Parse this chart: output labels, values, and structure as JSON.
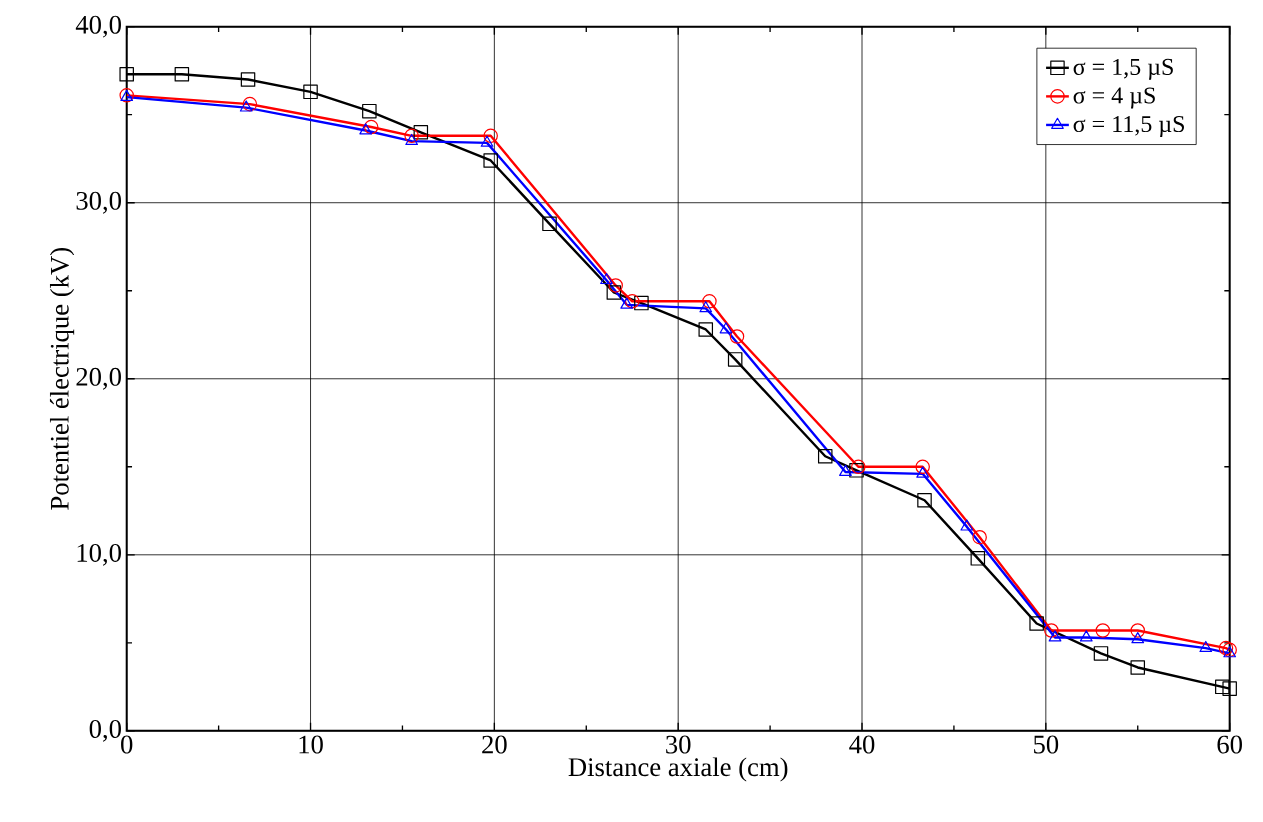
{
  "chart_data": {
    "type": "line",
    "xlabel": "Distance axiale (cm)",
    "ylabel": "Potentiel électrique (kV)",
    "xlim": [
      0,
      60
    ],
    "ylim": [
      0,
      40
    ],
    "xticks": [
      0,
      10,
      20,
      30,
      40,
      50,
      60
    ],
    "yticks": [
      {
        "value": 0,
        "label": "0,0"
      },
      {
        "value": 10,
        "label": "10,0"
      },
      {
        "value": 20,
        "label": "20,0"
      },
      {
        "value": 30,
        "label": "30,0"
      },
      {
        "value": 40,
        "label": "40,0"
      }
    ],
    "grid": true,
    "legend": "top right",
    "series": [
      {
        "name": "σ = 1,5 µS",
        "color": "#000000",
        "marker": "square",
        "x": [
          0,
          3,
          6.6,
          10,
          13.2,
          16,
          19.8,
          23,
          26.5,
          28,
          31.5,
          33.1,
          38,
          39.7,
          43.4,
          46.3,
          49.5,
          53,
          55,
          59.6,
          60
        ],
        "values": [
          37.3,
          37.3,
          37.0,
          36.3,
          35.2,
          34.0,
          32.4,
          28.8,
          24.9,
          24.3,
          22.8,
          21.1,
          15.6,
          14.8,
          13.1,
          9.8,
          6.1,
          4.4,
          3.6,
          2.5,
          2.4
        ]
      },
      {
        "name": "σ = 4 µS",
        "color": "#ff0000",
        "marker": "circle",
        "x": [
          0,
          6.7,
          13.3,
          15.5,
          19.8,
          26.6,
          27.5,
          31.7,
          33.2,
          39.8,
          43.3,
          46.4,
          50.3,
          53.1,
          55,
          59.8,
          60
        ],
        "values": [
          36.1,
          35.6,
          34.3,
          33.8,
          33.8,
          25.3,
          24.4,
          24.4,
          22.4,
          15.0,
          15.0,
          11.0,
          5.7,
          5.7,
          5.7,
          4.7,
          4.6
        ]
      },
      {
        "name": "σ = 11,5 µS",
        "color": "#0000ff",
        "marker": "triangle",
        "x": [
          0,
          6.5,
          13,
          15.5,
          19.6,
          26.1,
          27.2,
          31.5,
          32.6,
          39.1,
          43.3,
          45.7,
          50.5,
          52.2,
          55,
          58.7,
          60
        ],
        "values": [
          36.0,
          35.4,
          34.1,
          33.5,
          33.4,
          25.6,
          24.2,
          24.0,
          22.8,
          14.7,
          14.6,
          11.6,
          5.3,
          5.3,
          5.2,
          4.7,
          4.4
        ]
      }
    ]
  }
}
